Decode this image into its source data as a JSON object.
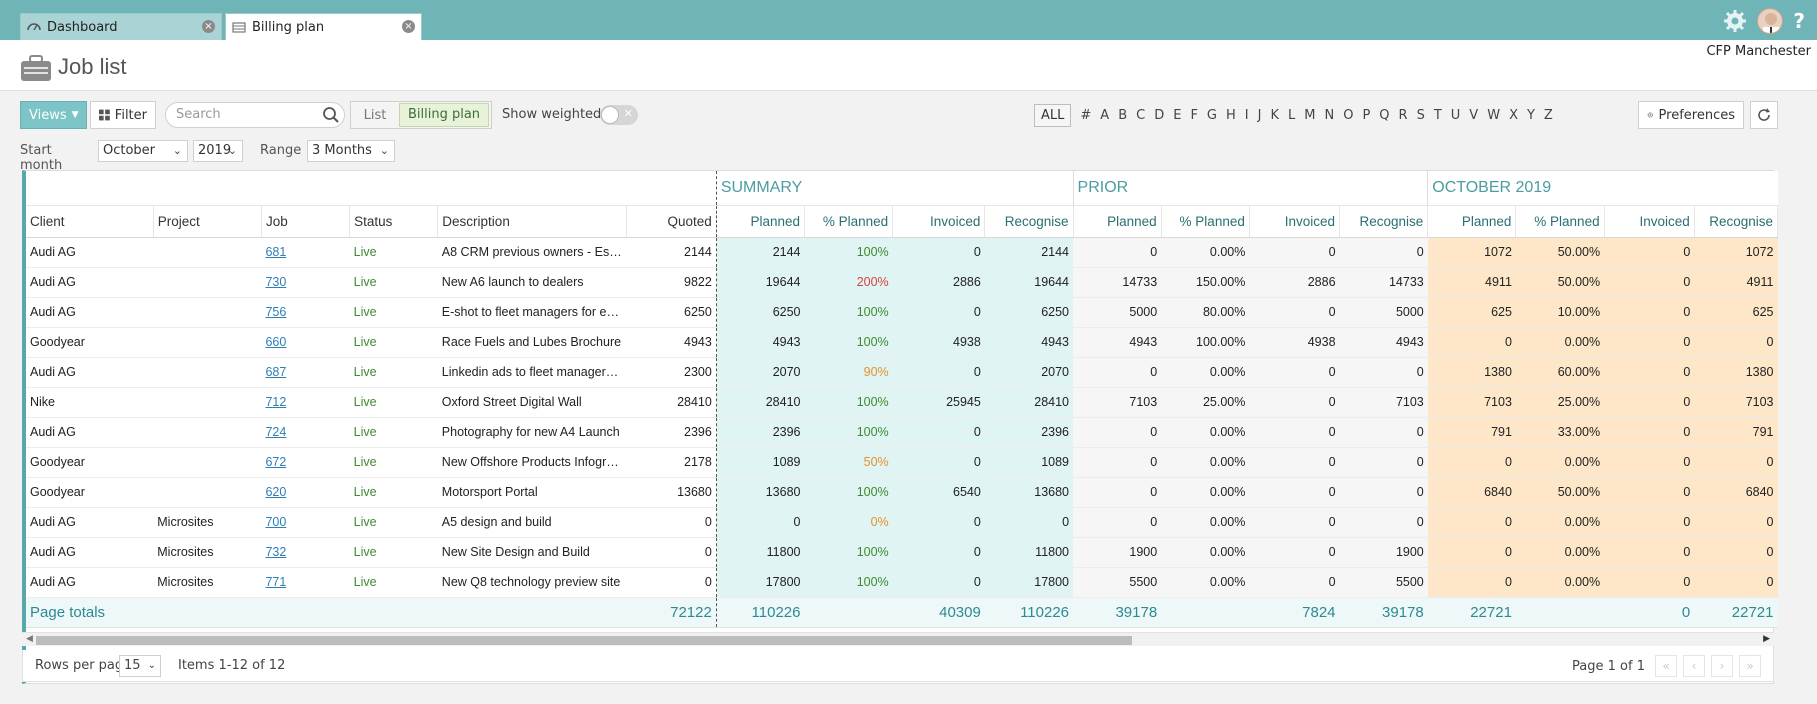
{
  "tabs": [
    {
      "label": "Dashboard",
      "icon": "speedometer-icon"
    },
    {
      "label": "Billing plan",
      "icon": "billing-icon"
    }
  ],
  "header": {
    "title": "Job list",
    "company": "CFP Manchester"
  },
  "toolbar": {
    "views_label": "Views",
    "filter_label": "Filter",
    "search_placeholder": "Search",
    "seg_list": "List",
    "seg_billing": "Billing plan",
    "show_weighted": "Show weighted",
    "weighted_on": false,
    "alpha_all": "ALL",
    "alpha": [
      "#",
      "A",
      "B",
      "C",
      "D",
      "E",
      "F",
      "G",
      "H",
      "I",
      "J",
      "K",
      "L",
      "M",
      "N",
      "O",
      "P",
      "Q",
      "R",
      "S",
      "T",
      "U",
      "V",
      "W",
      "X",
      "Y",
      "Z"
    ],
    "preferences_label": "Preferences"
  },
  "filters": {
    "start_month_label": "Start month",
    "start_month": "October",
    "year": "2019",
    "range_label": "Range",
    "range": "3 Months"
  },
  "grid": {
    "groups": {
      "summary": "SUMMARY",
      "prior": "PRIOR",
      "october": "OCTOBER 2019"
    },
    "columns": {
      "client": "Client",
      "project": "Project",
      "job": "Job",
      "status": "Status",
      "description": "Description",
      "quoted": "Quoted",
      "planned": "Planned",
      "pct_planned": "% Planned",
      "invoiced": "Invoiced",
      "recognise": "Recognise"
    },
    "rows": [
      {
        "client": "Audi AG",
        "project": "",
        "job": "681",
        "status": "Live",
        "description": "A8 CRM previous owners - Esh…",
        "quoted": "2144",
        "s_planned": "2144",
        "s_pct": "100%",
        "s_pct_color": "green",
        "s_invoiced": "0",
        "s_recognise": "2144",
        "p_planned": "0",
        "p_pct": "0.00%",
        "p_invoiced": "0",
        "p_recognise": "0",
        "o_planned": "1072",
        "o_pct": "50.00%",
        "o_invoiced": "0",
        "o_recognise": "1072"
      },
      {
        "client": "Audi AG",
        "project": "",
        "job": "730",
        "status": "Live",
        "description": "New A6 launch to dealers",
        "quoted": "9822",
        "s_planned": "19644",
        "s_pct": "200%",
        "s_pct_color": "red",
        "s_invoiced": "2886",
        "s_recognise": "19644",
        "p_planned": "14733",
        "p_pct": "150.00%",
        "p_invoiced": "2886",
        "p_recognise": "14733",
        "o_planned": "4911",
        "o_pct": "50.00%",
        "o_invoiced": "0",
        "o_recognise": "4911"
      },
      {
        "client": "Audi AG",
        "project": "",
        "job": "756",
        "status": "Live",
        "description": "E-shot to fleet managers for e…",
        "quoted": "6250",
        "s_planned": "6250",
        "s_pct": "100%",
        "s_pct_color": "green",
        "s_invoiced": "0",
        "s_recognise": "6250",
        "p_planned": "5000",
        "p_pct": "80.00%",
        "p_invoiced": "0",
        "p_recognise": "5000",
        "o_planned": "625",
        "o_pct": "10.00%",
        "o_invoiced": "0",
        "o_recognise": "625"
      },
      {
        "client": "Goodyear",
        "project": "",
        "job": "660",
        "status": "Live",
        "description": "Race Fuels and Lubes Brochure",
        "quoted": "4943",
        "s_planned": "4943",
        "s_pct": "100%",
        "s_pct_color": "green",
        "s_invoiced": "4938",
        "s_recognise": "4943",
        "p_planned": "4943",
        "p_pct": "100.00%",
        "p_invoiced": "4938",
        "p_recognise": "4943",
        "o_planned": "0",
        "o_pct": "0.00%",
        "o_invoiced": "0",
        "o_recognise": "0"
      },
      {
        "client": "Audi AG",
        "project": "",
        "job": "687",
        "status": "Live",
        "description": "Linkedin ads to fleet manager…",
        "quoted": "2300",
        "s_planned": "2070",
        "s_pct": "90%",
        "s_pct_color": "orange",
        "s_invoiced": "0",
        "s_recognise": "2070",
        "p_planned": "0",
        "p_pct": "0.00%",
        "p_invoiced": "0",
        "p_recognise": "0",
        "o_planned": "1380",
        "o_pct": "60.00%",
        "o_invoiced": "0",
        "o_recognise": "1380"
      },
      {
        "client": "Nike",
        "project": "",
        "job": "712",
        "status": "Live",
        "description": "Oxford Street Digital Wall",
        "quoted": "28410",
        "s_planned": "28410",
        "s_pct": "100%",
        "s_pct_color": "green",
        "s_invoiced": "25945",
        "s_recognise": "28410",
        "p_planned": "7103",
        "p_pct": "25.00%",
        "p_invoiced": "0",
        "p_recognise": "7103",
        "o_planned": "7103",
        "o_pct": "25.00%",
        "o_invoiced": "0",
        "o_recognise": "7103"
      },
      {
        "client": "Audi AG",
        "project": "",
        "job": "724",
        "status": "Live",
        "description": "Photography for new A4 Launch",
        "quoted": "2396",
        "s_planned": "2396",
        "s_pct": "100%",
        "s_pct_color": "green",
        "s_invoiced": "0",
        "s_recognise": "2396",
        "p_planned": "0",
        "p_pct": "0.00%",
        "p_invoiced": "0",
        "p_recognise": "0",
        "o_planned": "791",
        "o_pct": "33.00%",
        "o_invoiced": "0",
        "o_recognise": "791"
      },
      {
        "client": "Goodyear",
        "project": "",
        "job": "672",
        "status": "Live",
        "description": "New Offshore Products Infogr…",
        "quoted": "2178",
        "s_planned": "1089",
        "s_pct": "50%",
        "s_pct_color": "orange",
        "s_invoiced": "0",
        "s_recognise": "1089",
        "p_planned": "0",
        "p_pct": "0.00%",
        "p_invoiced": "0",
        "p_recognise": "0",
        "o_planned": "0",
        "o_pct": "0.00%",
        "o_invoiced": "0",
        "o_recognise": "0"
      },
      {
        "client": "Goodyear",
        "project": "",
        "job": "620",
        "status": "Live",
        "description": "Motorsport Portal",
        "quoted": "13680",
        "s_planned": "13680",
        "s_pct": "100%",
        "s_pct_color": "green",
        "s_invoiced": "6540",
        "s_recognise": "13680",
        "p_planned": "0",
        "p_pct": "0.00%",
        "p_invoiced": "0",
        "p_recognise": "0",
        "o_planned": "6840",
        "o_pct": "50.00%",
        "o_invoiced": "0",
        "o_recognise": "6840"
      },
      {
        "client": "Audi AG",
        "project": "Microsites",
        "job": "700",
        "status": "Live",
        "description": "A5 design and build",
        "quoted": "0",
        "s_planned": "0",
        "s_pct": "0%",
        "s_pct_color": "orange",
        "s_invoiced": "0",
        "s_recognise": "0",
        "p_planned": "0",
        "p_pct": "0.00%",
        "p_invoiced": "0",
        "p_recognise": "0",
        "o_planned": "0",
        "o_pct": "0.00%",
        "o_invoiced": "0",
        "o_recognise": "0"
      },
      {
        "client": "Audi AG",
        "project": "Microsites",
        "job": "732",
        "status": "Live",
        "description": "New Site Design and Build",
        "quoted": "0",
        "s_planned": "11800",
        "s_pct": "100%",
        "s_pct_color": "green",
        "s_invoiced": "0",
        "s_recognise": "11800",
        "p_planned": "1900",
        "p_pct": "0.00%",
        "p_invoiced": "0",
        "p_recognise": "1900",
        "o_planned": "0",
        "o_pct": "0.00%",
        "o_invoiced": "0",
        "o_recognise": "0"
      },
      {
        "client": "Audi AG",
        "project": "Microsites",
        "job": "771",
        "status": "Live",
        "description": "New Q8 technology preview site",
        "quoted": "0",
        "s_planned": "17800",
        "s_pct": "100%",
        "s_pct_color": "green",
        "s_invoiced": "0",
        "s_recognise": "17800",
        "p_planned": "5500",
        "p_pct": "0.00%",
        "p_invoiced": "0",
        "p_recognise": "5500",
        "o_planned": "0",
        "o_pct": "0.00%",
        "o_invoiced": "0",
        "o_recognise": "0"
      }
    ],
    "totals": {
      "label": "Page totals",
      "quoted": "72122",
      "s_planned": "110226",
      "s_invoiced": "40309",
      "s_recognise": "110226",
      "p_planned": "39178",
      "p_invoiced": "7824",
      "p_recognise": "39178",
      "o_planned": "22721",
      "o_invoiced": "0",
      "o_recognise": "22721"
    }
  },
  "pager": {
    "rows_per_page_label": "Rows per page",
    "rows_per_page": "15",
    "items_text": "Items 1-12 of 12",
    "page_text": "Page 1 of 1"
  },
  "colors": {
    "accent": "#6fb5b8",
    "summary_bg": "#dff4f3",
    "october_bg": "#fde7c8",
    "live": "#3f8a2f",
    "pct_red": "#d64242",
    "pct_orange": "#e5932a",
    "link": "#2d7fb8"
  }
}
